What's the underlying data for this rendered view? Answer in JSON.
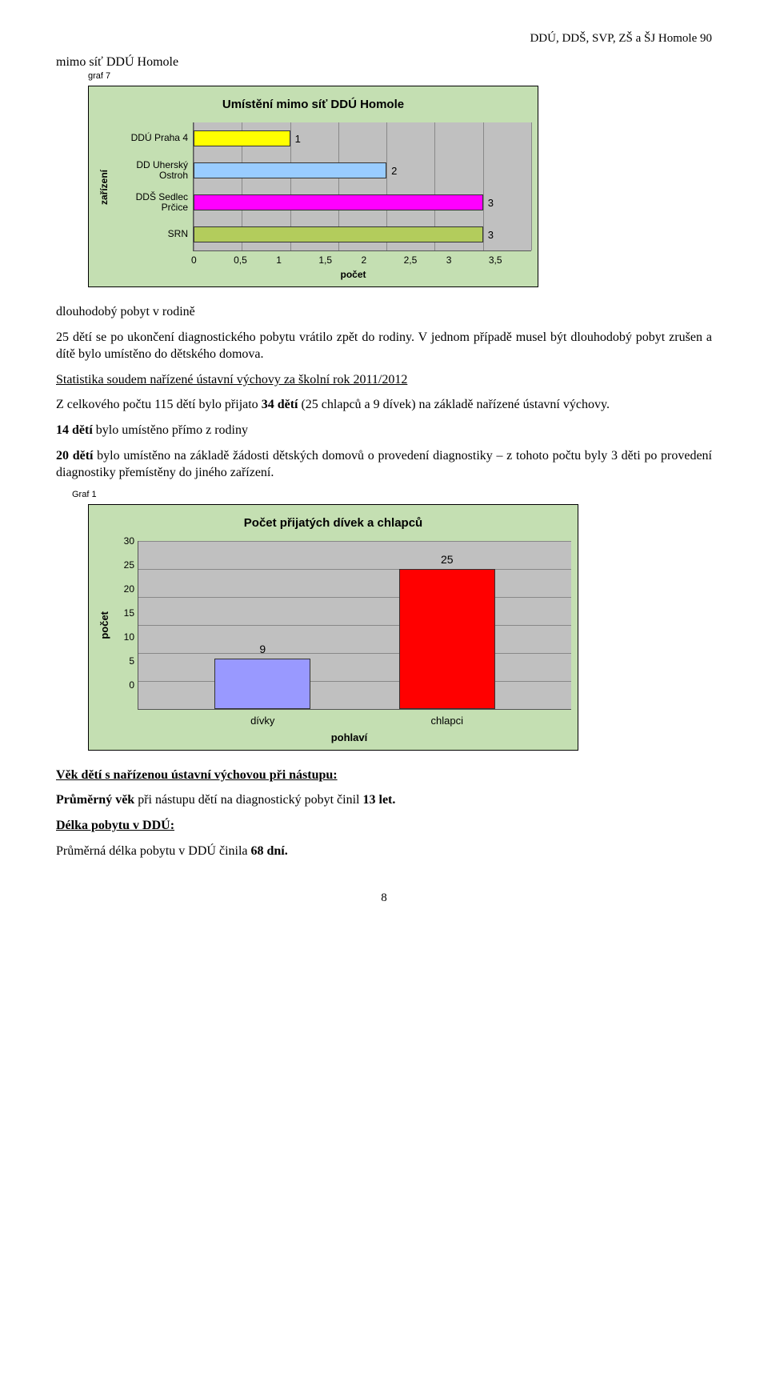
{
  "header": "DDÚ, DDŠ, SVP, ZŠ a ŠJ Homole 90",
  "section1": {
    "title": "mimo síť DDÚ Homole",
    "graf_label": "graf 7"
  },
  "chart1": {
    "type": "bar-horizontal",
    "title": "Umístění mimo síť DDÚ Homole",
    "background_color": "#c4dfb2",
    "plot_color": "#c0c0c0",
    "y_label": "zařízení",
    "x_label": "počet",
    "x_min": 0,
    "x_max": 3.5,
    "x_step": 0.5,
    "x_ticks": [
      "0",
      "0,5",
      "1",
      "1,5",
      "2",
      "2,5",
      "3",
      "3,5"
    ],
    "categories": [
      {
        "label": "DDÚ Praha 4",
        "value": 1,
        "color": "#ffff00"
      },
      {
        "label": "DD Uherský Ostroh",
        "value": 2,
        "color": "#99ccff"
      },
      {
        "label": "DDŠ Sedlec Prčice",
        "value": 3,
        "color": "#ff00ff"
      },
      {
        "label": "SRN",
        "value": 3,
        "color": "#b3cc5c"
      }
    ]
  },
  "para1": "dlouhodobý pobyt v rodině",
  "para2a": "25 dětí se po ukončení diagnostického pobytu vrátilo zpět do rodiny.",
  "para2b": " V jednom případě musel být dlouhodobý pobyt zrušen  a dítě bylo umístěno do dětského domova.",
  "para3_title": "Statistika soudem nařízené  ústavní výchovy za školní rok 2011/2012",
  "para4a": "Z celkového počtu 115 dětí bylo přijato  ",
  "para4b": "34 dětí",
  "para4c": " (25 chlapců a 9 dívek) na základě nařízené ústavní výchovy.",
  "para5a": "14 dětí",
  "para5b": " bylo umístěno přímo z rodiny",
  "para6a": "20 dětí",
  "para6b": " bylo umístěno na základě žádosti dětských domovů o provedení diagnostiky – z tohoto počtu byly 3 děti po provedení diagnostiky přemístěny do jiného zařízení.",
  "graf1_label": "Graf 1",
  "chart2": {
    "type": "bar",
    "title": "Počet přijatých dívek a chlapců",
    "background_color": "#c4dfb2",
    "plot_color": "#c0c0c0",
    "y_label": "počet",
    "x_label": "pohlaví",
    "y_min": 0,
    "y_max": 30,
    "y_step": 5,
    "y_ticks": [
      "0",
      "5",
      "10",
      "15",
      "20",
      "25",
      "30"
    ],
    "categories": [
      {
        "label": "dívky",
        "value": 9,
        "color": "#9999ff"
      },
      {
        "label": "chlapci",
        "value": 25,
        "color": "#ff0000"
      }
    ]
  },
  "para7": "Věk dětí  s nařízenou ústavní výchovou při nástupu:",
  "para8a": "Průměrný věk",
  "para8b": " při nástupu dětí na diagnostický pobyt činil ",
  "para8c": "13 let.",
  "para9": "Délka pobytu v DDÚ:",
  "para10a": "Průměrná délka pobytu v DDÚ činila ",
  "para10b": "68 dní.",
  "page_number": "8"
}
